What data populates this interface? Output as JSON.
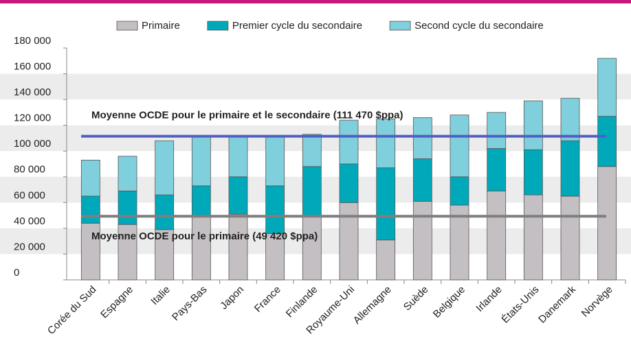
{
  "chart_data": {
    "type": "stacked_bar",
    "categories": [
      "Corée du Sud",
      "Espagne",
      "Italie",
      "Pays-Bas",
      "Japon",
      "France",
      "Finlande",
      "Royaume-Uni",
      "Allemagne",
      "Suède",
      "Belgique",
      "Irlande",
      "États-Unis",
      "Danemark",
      "Norvège"
    ],
    "series": [
      {
        "name": "Primaire",
        "color": "#c3bfc3",
        "values": [
          44000,
          43000,
          39000,
          49000,
          51000,
          36000,
          49000,
          60000,
          31000,
          61000,
          58000,
          69000,
          66000,
          65000,
          88000
        ]
      },
      {
        "name": "Premier cycle du secondaire",
        "color": "#00a9b9",
        "values": [
          21000,
          26000,
          27000,
          24000,
          29000,
          37000,
          39000,
          30000,
          56000,
          33000,
          22000,
          33000,
          35000,
          43000,
          39000
        ]
      },
      {
        "name": "Second cycle du secondaire",
        "color": "#80cfdc",
        "values": [
          28000,
          27000,
          42000,
          38000,
          31000,
          38000,
          25000,
          34000,
          38000,
          32000,
          48000,
          28000,
          38000,
          33000,
          45000
        ]
      }
    ],
    "reference_lines": [
      {
        "label": "Moyenne  OCDE pour le primaire et le secondaire (111 470 $ppa)",
        "value": 111470,
        "color": "#5060c0"
      },
      {
        "label": "Moyenne  OCDE pour le primaire (49 420 $ppa)",
        "value": 49420,
        "color": "#7f7f7f"
      }
    ],
    "ylim": [
      0,
      180000
    ],
    "yticks": [
      0,
      {
        "value": 20000,
        "label": "20 000"
      },
      {
        "value": 40000,
        "label": "40 000"
      },
      {
        "value": 60000,
        "label": "60 000"
      },
      {
        "value": 80000,
        "label": "80 000"
      },
      {
        "value": 100000,
        "label": "100 000"
      },
      {
        "value": 120000,
        "label": "120 000"
      },
      {
        "value": 140000,
        "label": "140 000"
      },
      {
        "value": 160000,
        "label": "160 000"
      },
      {
        "value": 180000,
        "label": "180 000"
      }
    ],
    "legend": "top"
  }
}
